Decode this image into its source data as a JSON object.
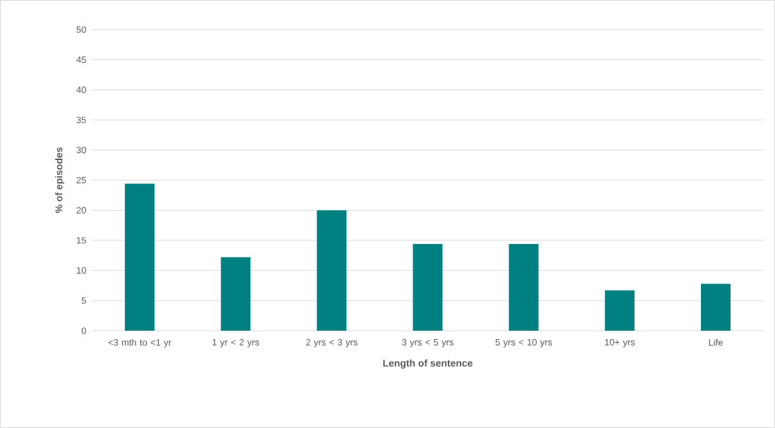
{
  "chart_data": {
    "type": "bar",
    "xlabel": "Length of sentence",
    "ylabel": "% of episodes",
    "categories": [
      "<3 mth to <1 yr",
      "1 yr < 2 yrs",
      "2 yrs < 3 yrs",
      "3 yrs < 5 yrs",
      "5 yrs < 10 yrs",
      "10+ yrs",
      "Life"
    ],
    "values": [
      24.4,
      12.2,
      20.0,
      14.4,
      14.4,
      6.7,
      7.8
    ],
    "color": "#008080",
    "ylim": [
      0,
      50
    ],
    "yticks": [
      0,
      5,
      10,
      15,
      20,
      25,
      30,
      35,
      40,
      45,
      50
    ],
    "grid": "y"
  }
}
